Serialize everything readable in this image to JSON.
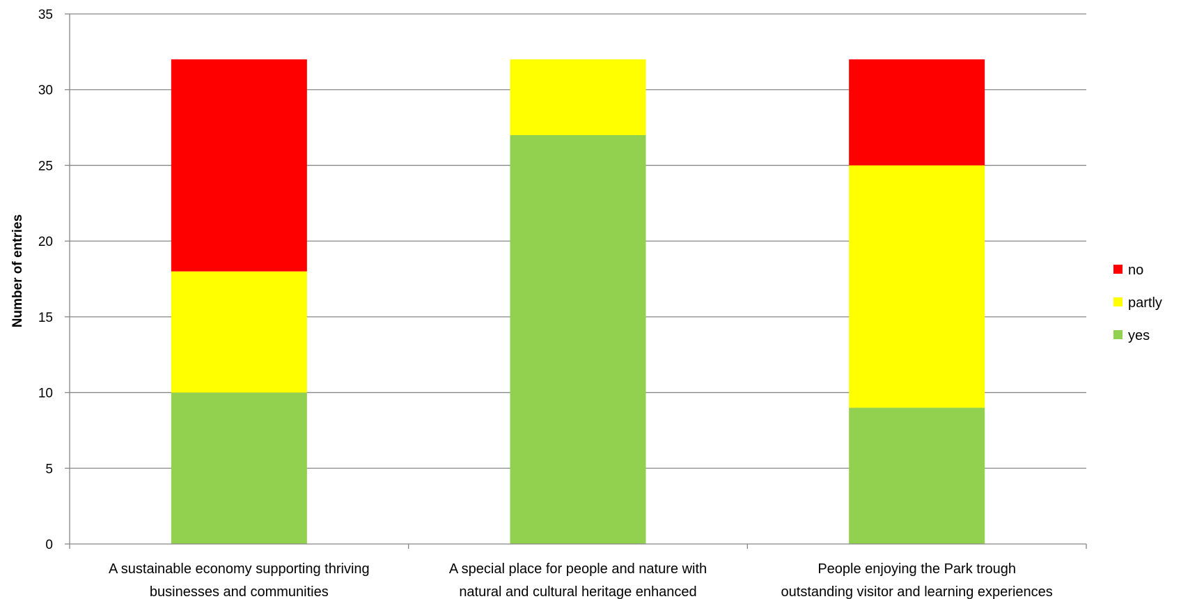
{
  "chart_data": {
    "type": "bar",
    "stacked": true,
    "title": "",
    "xlabel": "",
    "ylabel": "Number of entries",
    "ylim": [
      0,
      35
    ],
    "yticks": [
      0,
      5,
      10,
      15,
      20,
      25,
      30,
      35
    ],
    "grid": true,
    "legend_position": "right",
    "categories": [
      [
        "A sustainable economy supporting thriving",
        "businesses and communities"
      ],
      [
        "A special place for people and nature with",
        "natural and cultural heritage enhanced"
      ],
      [
        "People enjoying the Park trough",
        "outstanding visitor and learning experiences"
      ]
    ],
    "series": [
      {
        "name": "yes",
        "color": "#92D050",
        "values": [
          10,
          27,
          9
        ]
      },
      {
        "name": "partly",
        "color": "#FFFF00",
        "values": [
          8,
          5,
          16
        ]
      },
      {
        "name": "no",
        "color": "#FF0000",
        "values": [
          14,
          0,
          7
        ]
      }
    ],
    "legend_order": [
      "no",
      "partly",
      "yes"
    ],
    "gridline_color": "#868686",
    "axis_color": "#868686"
  }
}
